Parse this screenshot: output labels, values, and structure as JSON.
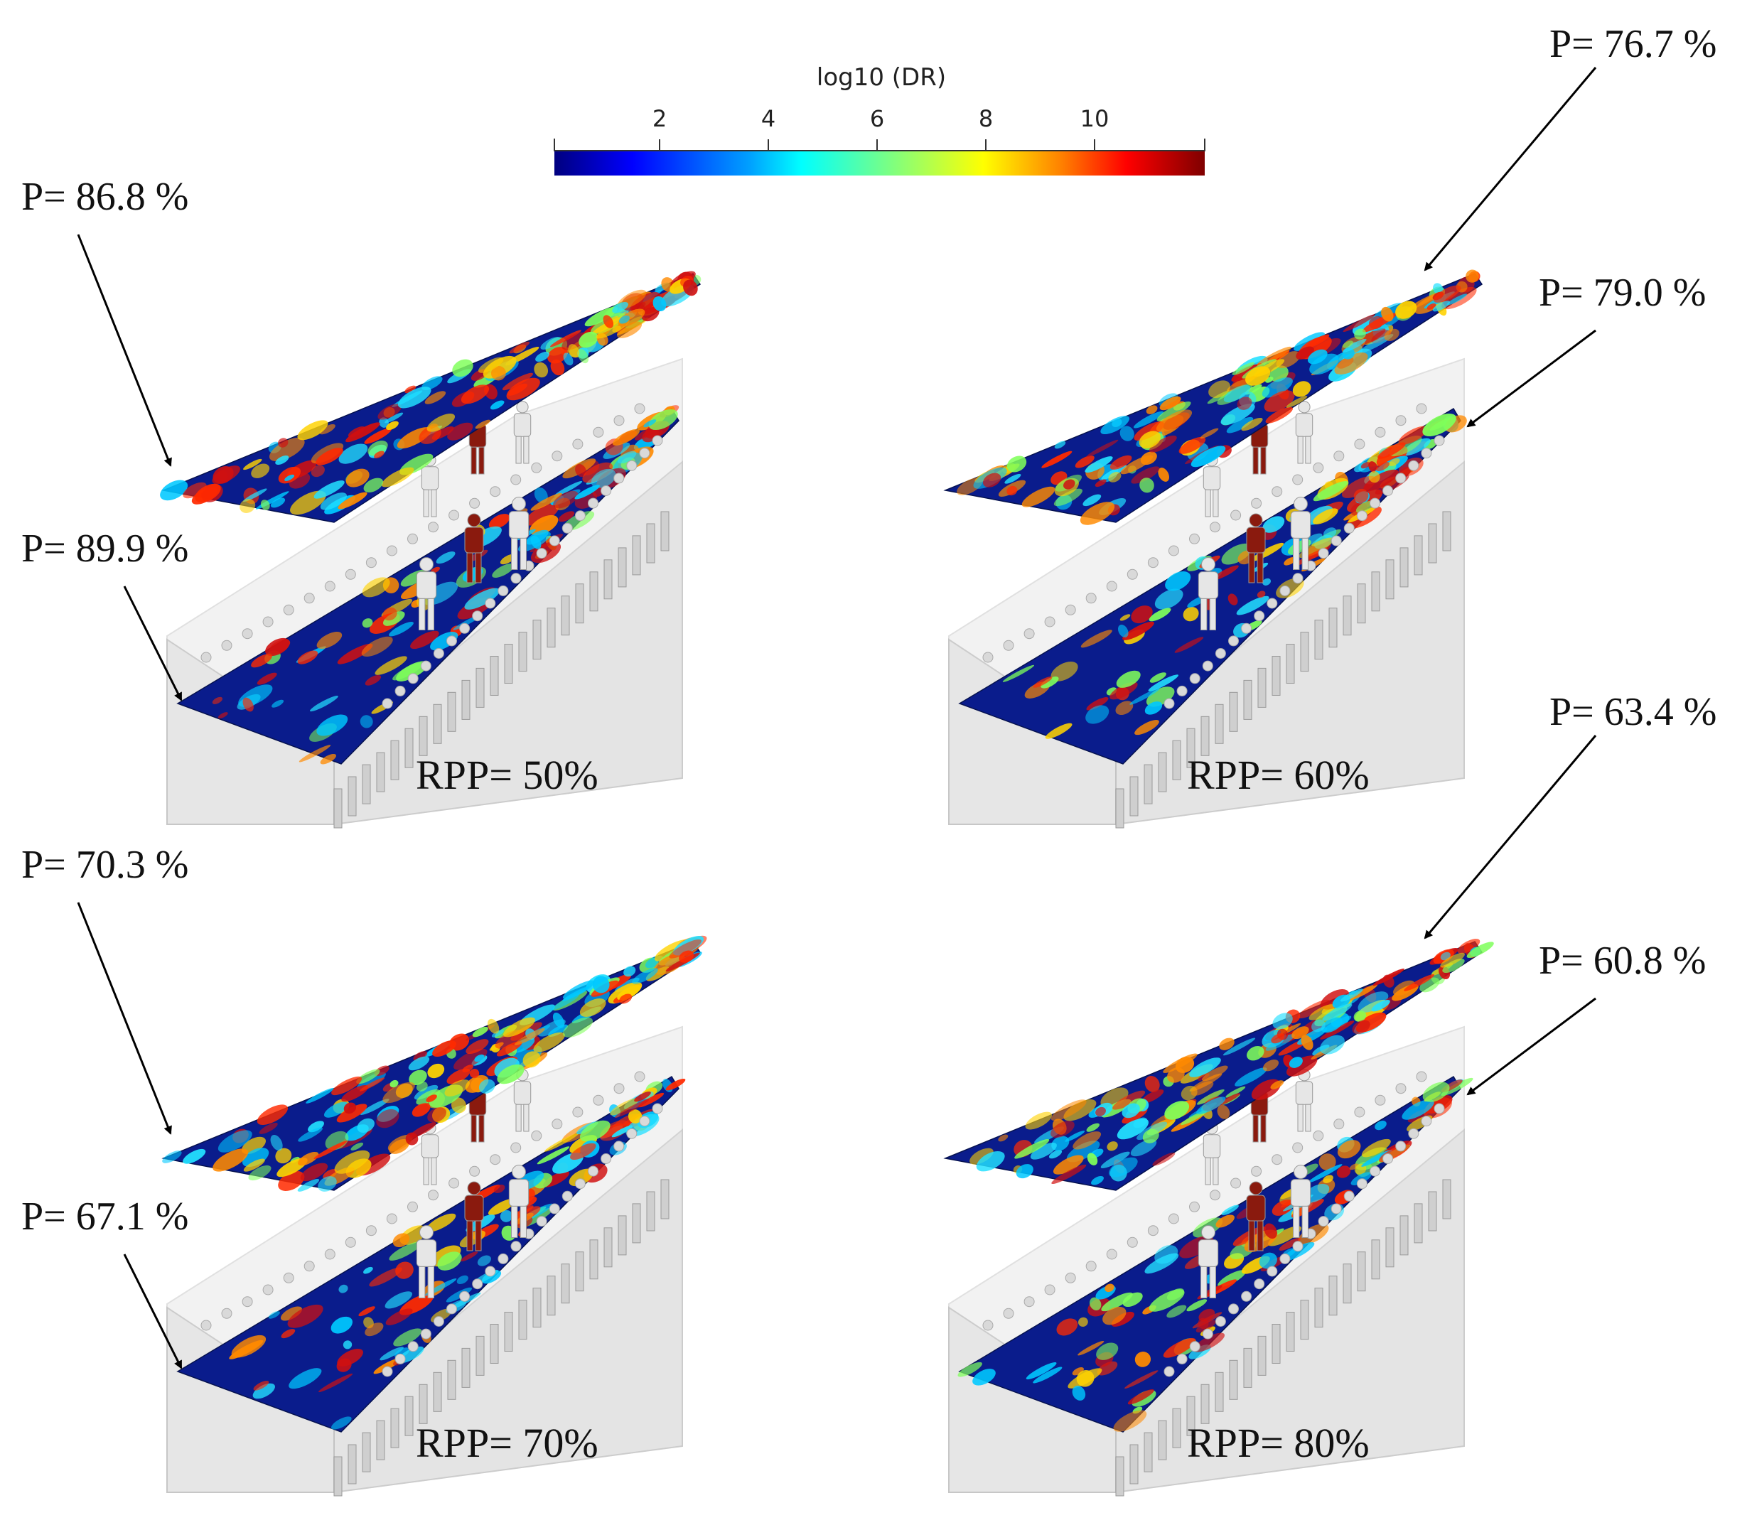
{
  "colorbar": {
    "title": "log10 (DR)",
    "ticks": [
      "2",
      "4",
      "6",
      "8",
      "10"
    ],
    "colors": [
      "#00007f",
      "#0000ff",
      "#00a0ff",
      "#00ffff",
      "#7fff7f",
      "#ffff00",
      "#ff8000",
      "#ff0000",
      "#7f0000"
    ]
  },
  "panels": [
    {
      "rpp_label": "RPP= 50%",
      "upper_p": "P= 86.8 %",
      "lower_p": "P= 89.9 %"
    },
    {
      "rpp_label": "RPP= 60%",
      "upper_p": "P= 76.7 %",
      "lower_p": "P= 79.0 %"
    },
    {
      "rpp_label": "RPP= 70%",
      "upper_p": "P= 70.3 %",
      "lower_p": "P= 67.1 %"
    },
    {
      "rpp_label": "RPP= 80%",
      "upper_p": "P= 63.4 %",
      "lower_p": "P= 60.8 %"
    }
  ],
  "style": {
    "field_base": "#0a1c8c",
    "infected_color": "#8a1a0e",
    "passenger_color": "#e6e6e6",
    "cabin_color": "#e9e9e9"
  }
}
